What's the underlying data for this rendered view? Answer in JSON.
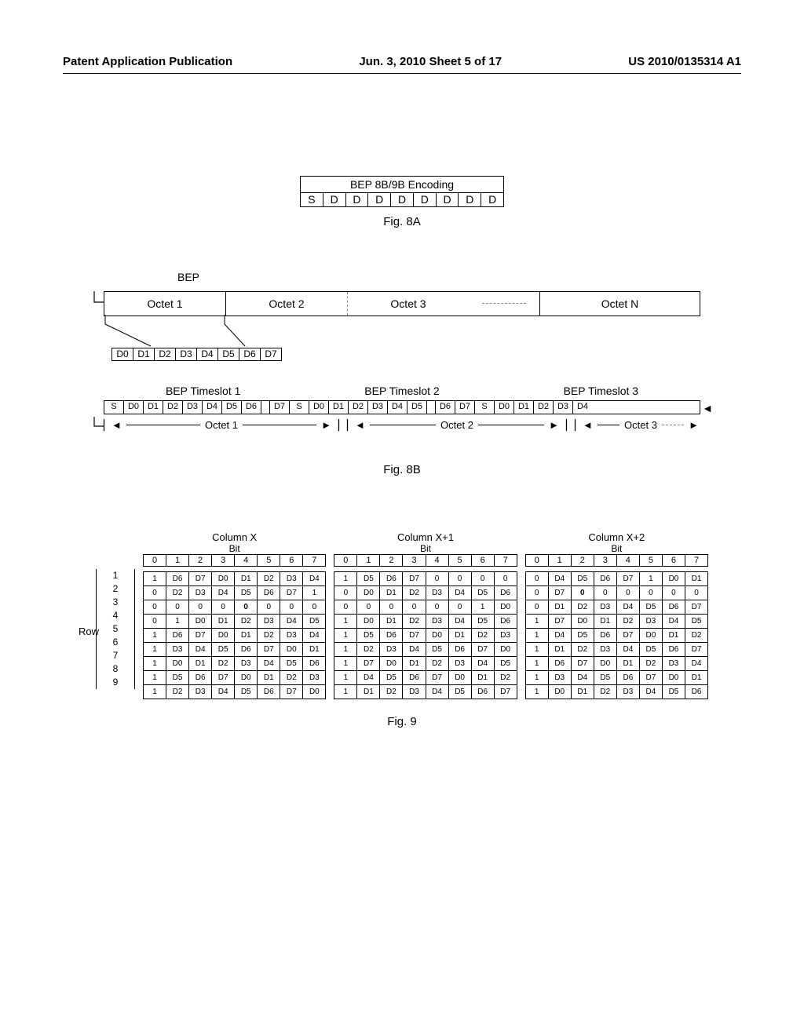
{
  "header": {
    "left": "Patent Application Publication",
    "center": "Jun. 3, 2010  Sheet 5 of 17",
    "right": "US 2010/0135314 A1"
  },
  "fig8a": {
    "title": "BEP 8B/9B Encoding",
    "cells": [
      "S",
      "D",
      "D",
      "D",
      "D",
      "D",
      "D",
      "D",
      "D"
    ],
    "caption": "Fig. 8A"
  },
  "fig8b": {
    "bep_label": "BEP",
    "octets": [
      "Octet 1",
      "Octet 2",
      "Octet 3",
      "Octet N"
    ],
    "bits": [
      "D0",
      "D1",
      "D2",
      "D3",
      "D4",
      "D5",
      "D6",
      "D7"
    ],
    "timeslot_labels": [
      "BEP Timeslot 1",
      "BEP Timeslot 2",
      "BEP Timeslot 3"
    ],
    "timeslot_cells": [
      "S",
      "D0",
      "D1",
      "D2",
      "D3",
      "D4",
      "D5",
      "D6",
      "",
      "D7",
      "S",
      "D0",
      "D1",
      "D2",
      "D3",
      "D4",
      "D5",
      "",
      "D6",
      "D7",
      "S",
      "D0",
      "D1",
      "D2",
      "D3",
      "D4"
    ],
    "octet_arrows": [
      "Octet 1",
      "Octet 2",
      "Octet 3"
    ],
    "caption": "Fig. 8B"
  },
  "fig9": {
    "row_label": "Row",
    "row_nums": [
      "1",
      "2",
      "3",
      "4",
      "5",
      "6",
      "7",
      "8",
      "9"
    ],
    "bit_header": [
      "0",
      "1",
      "2",
      "3",
      "4",
      "5",
      "6",
      "7"
    ],
    "columns": [
      {
        "title": "Column X",
        "rows": [
          [
            "1",
            "D6",
            "D7",
            "D0",
            "D1",
            "D2",
            "D3",
            "D4"
          ],
          [
            "0",
            "D2",
            "D3",
            "D4",
            "D5",
            "D6",
            "D7",
            "1"
          ],
          [
            "0",
            "0",
            "0",
            "0",
            "0",
            "0",
            "0",
            "0"
          ],
          [
            "0",
            "1",
            "D0",
            "D1",
            "D2",
            "D3",
            "D4",
            "D5"
          ],
          [
            "1",
            "D6",
            "D7",
            "D0",
            "D1",
            "D2",
            "D3",
            "D4"
          ],
          [
            "1",
            "D3",
            "D4",
            "D5",
            "D6",
            "D7",
            "D0",
            "D1"
          ],
          [
            "1",
            "D0",
            "D1",
            "D2",
            "D3",
            "D4",
            "D5",
            "D6"
          ],
          [
            "1",
            "D5",
            "D6",
            "D7",
            "D0",
            "D1",
            "D2",
            "D3"
          ],
          [
            "1",
            "D2",
            "D3",
            "D4",
            "D5",
            "D6",
            "D7",
            "D0"
          ]
        ],
        "bold": [
          [
            2,
            4
          ]
        ]
      },
      {
        "title": "Column X+1",
        "rows": [
          [
            "1",
            "D5",
            "D6",
            "D7",
            "0",
            "0",
            "0",
            "0"
          ],
          [
            "0",
            "D0",
            "D1",
            "D2",
            "D3",
            "D4",
            "D5",
            "D6"
          ],
          [
            "0",
            "0",
            "0",
            "0",
            "0",
            "0",
            "1",
            "D0"
          ],
          [
            "1",
            "D0",
            "D1",
            "D2",
            "D3",
            "D4",
            "D5",
            "D6"
          ],
          [
            "1",
            "D5",
            "D6",
            "D7",
            "D0",
            "D1",
            "D2",
            "D3"
          ],
          [
            "1",
            "D2",
            "D3",
            "D4",
            "D5",
            "D6",
            "D7",
            "D0"
          ],
          [
            "1",
            "D7",
            "D0",
            "D1",
            "D2",
            "D3",
            "D4",
            "D5"
          ],
          [
            "1",
            "D4",
            "D5",
            "D6",
            "D7",
            "D0",
            "D1",
            "D2"
          ],
          [
            "1",
            "D1",
            "D2",
            "D3",
            "D4",
            "D5",
            "D6",
            "D7"
          ]
        ],
        "bold": []
      },
      {
        "title": "Column X+2",
        "rows": [
          [
            "0",
            "D4",
            "D5",
            "D6",
            "D7",
            "1",
            "D0",
            "D1"
          ],
          [
            "0",
            "D7",
            "0",
            "0",
            "0",
            "0",
            "0",
            "0"
          ],
          [
            "0",
            "D1",
            "D2",
            "D3",
            "D4",
            "D5",
            "D6",
            "D7"
          ],
          [
            "1",
            "D7",
            "D0",
            "D1",
            "D2",
            "D3",
            "D4",
            "D5"
          ],
          [
            "1",
            "D4",
            "D5",
            "D6",
            "D7",
            "D0",
            "D1",
            "D2"
          ],
          [
            "1",
            "D1",
            "D2",
            "D3",
            "D4",
            "D5",
            "D6",
            "D7"
          ],
          [
            "1",
            "D6",
            "D7",
            "D0",
            "D1",
            "D2",
            "D3",
            "D4"
          ],
          [
            "1",
            "D3",
            "D4",
            "D5",
            "D6",
            "D7",
            "D0",
            "D1"
          ],
          [
            "1",
            "D0",
            "D1",
            "D2",
            "D3",
            "D4",
            "D5",
            "D6"
          ]
        ],
        "bold": [
          [
            1,
            2
          ]
        ]
      }
    ],
    "caption": "Fig. 9"
  },
  "styling": {
    "font_family": "Arial",
    "text_color": "#000000",
    "background": "#ffffff",
    "border_color": "#000000",
    "dash_color": "#888888",
    "header_fontsize": 15,
    "caption_fontsize": 15,
    "table_fontsize": 11,
    "small_fontsize": 10
  }
}
